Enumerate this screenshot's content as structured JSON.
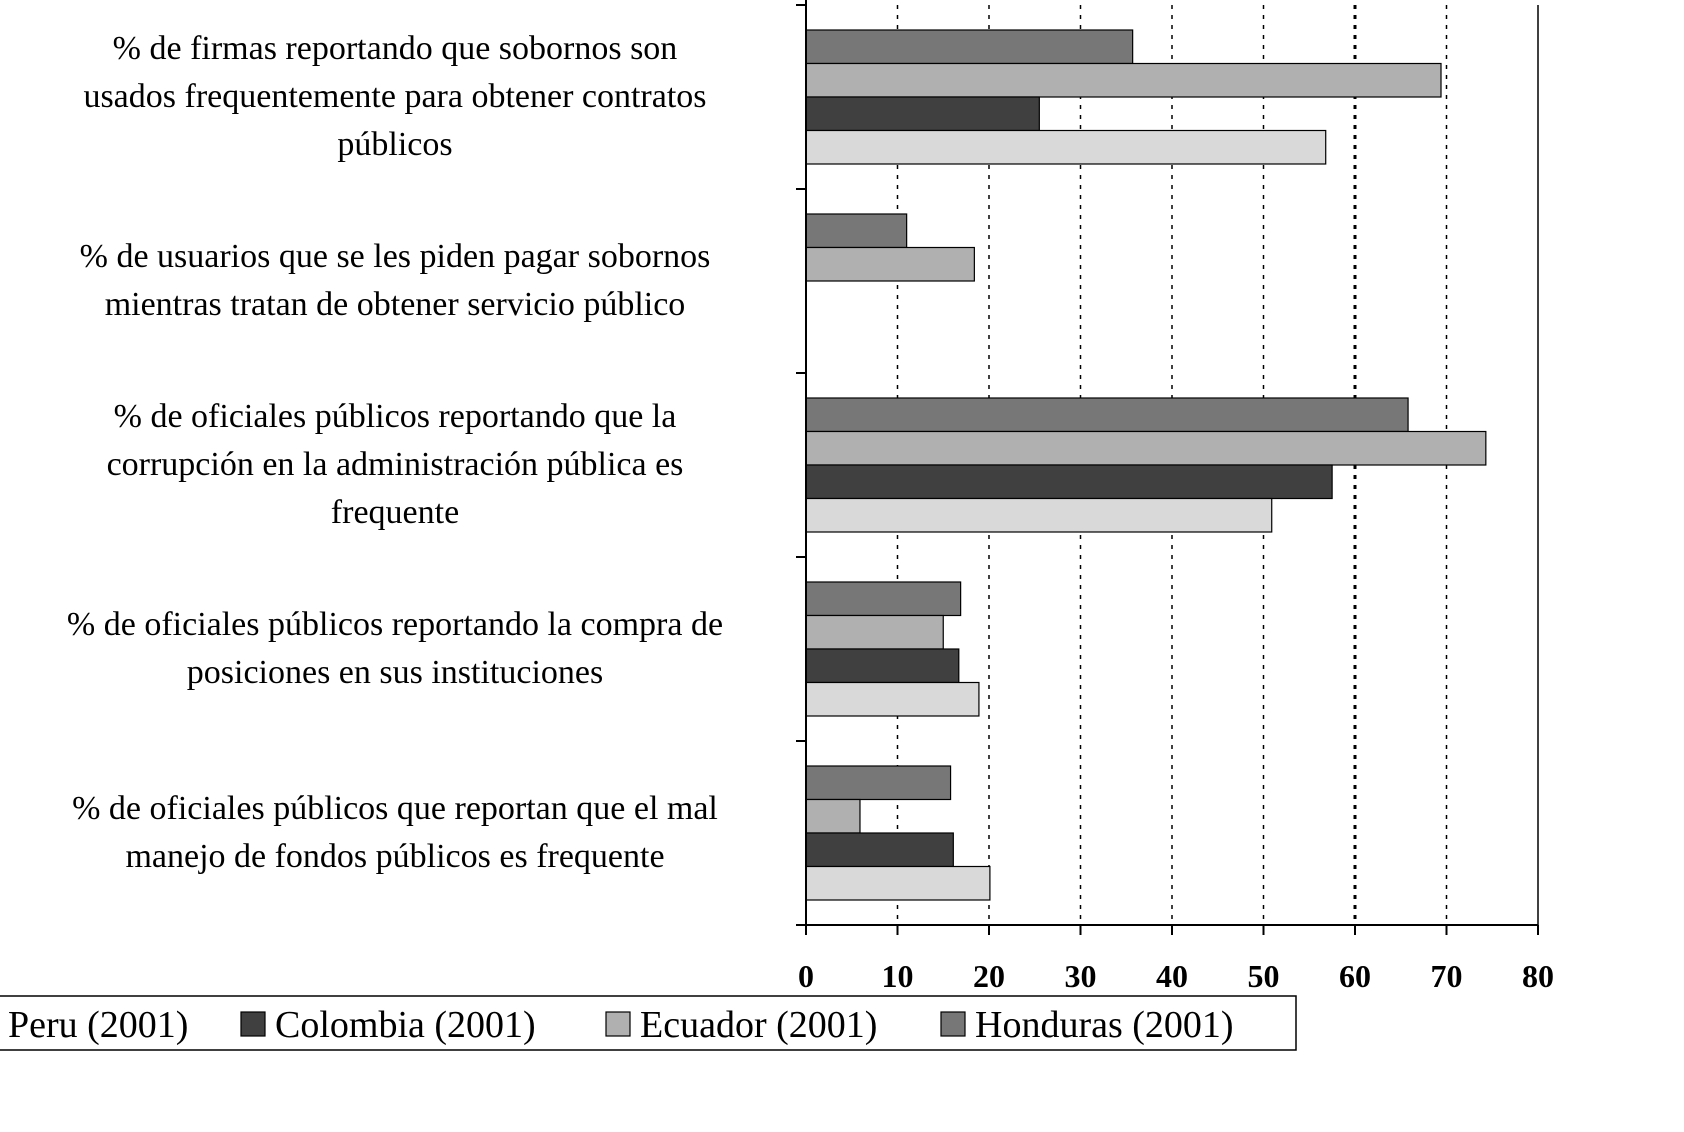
{
  "chart_data": {
    "type": "bar",
    "orientation": "horizontal",
    "categories": [
      "% de firmas reportando que sobornos son\nusados frequentemente para obtener contratos\npúblicos",
      "% de usuarios que se les piden pagar sobornos\nmientras tratan de obtener servicio público",
      "% de oficiales públicos reportando que la\ncorrupción en la administración pública es\nfrequente",
      "% de oficiales públicos reportando la compra de\nposiciones en sus instituciones",
      "% de oficiales públicos que reportan que el mal\nmanejo de fondos públicos es frequente"
    ],
    "series": [
      {
        "name": "Peru (2001)",
        "color": "#d9d9d9",
        "values": [
          56.8,
          null,
          50.9,
          18.9,
          20.1
        ]
      },
      {
        "name": "Colombia (2001)",
        "color": "#404040",
        "values": [
          25.5,
          null,
          57.5,
          16.7,
          16.1
        ]
      },
      {
        "name": "Ecuador (2001)",
        "color": "#b0b0b0",
        "values": [
          69.4,
          18.4,
          74.3,
          15.0,
          5.9
        ]
      },
      {
        "name": "Honduras (2001)",
        "color": "#777777",
        "values": [
          35.7,
          11.0,
          65.8,
          16.9,
          15.8
        ]
      }
    ],
    "xlim": [
      0,
      80
    ],
    "xticks": [
      0,
      10,
      20,
      30,
      40,
      50,
      60,
      70,
      80
    ],
    "grid": true,
    "legend": "bottom"
  }
}
